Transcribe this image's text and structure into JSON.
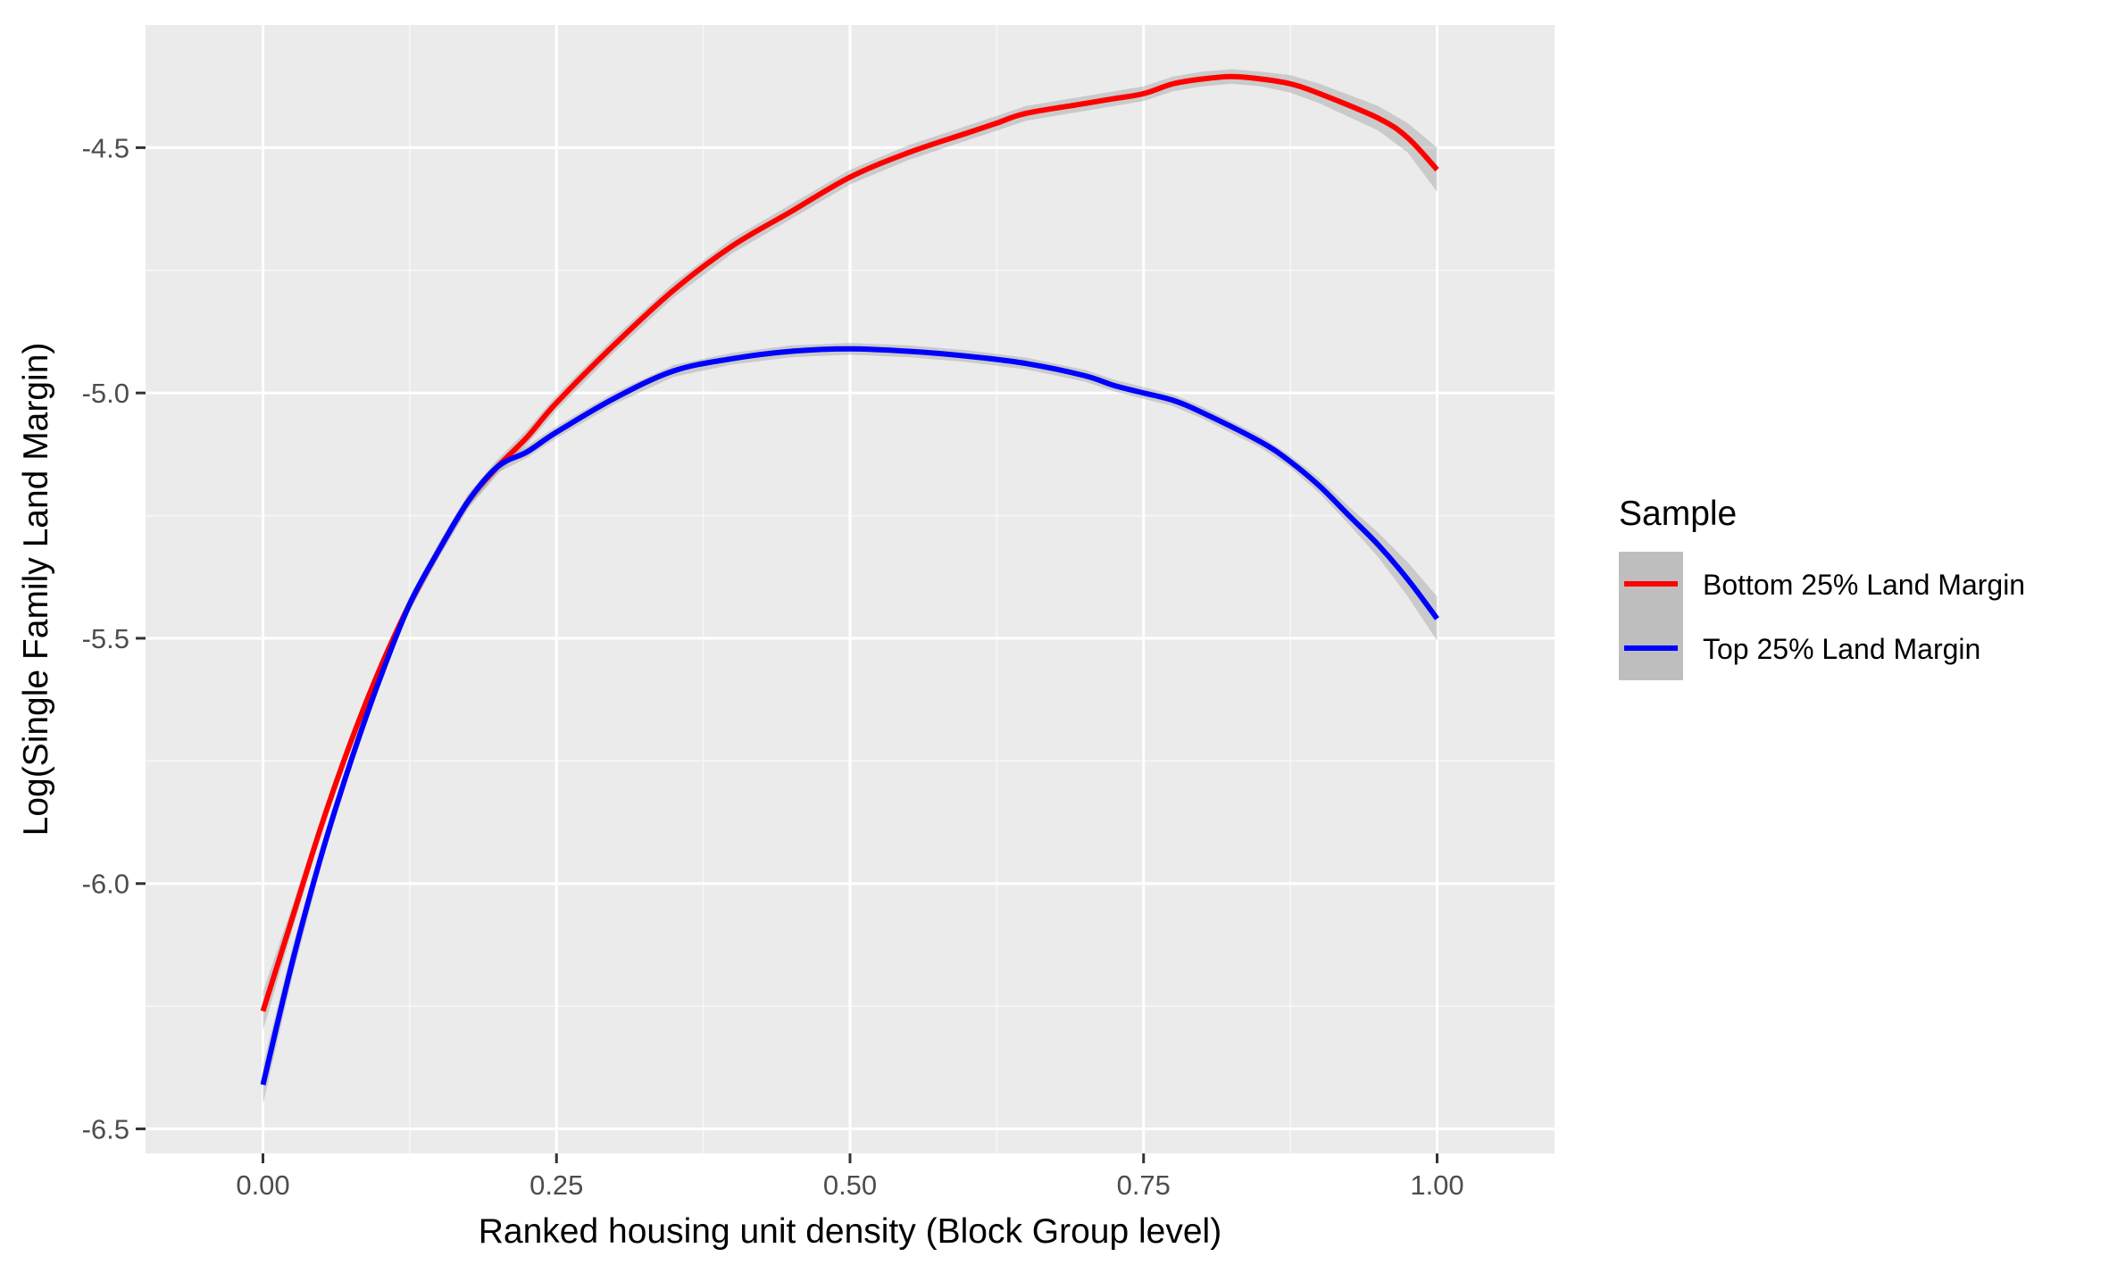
{
  "chart_data": {
    "type": "line",
    "xlabel": "Ranked housing unit density (Block Group level)",
    "ylabel": "Log(Single Family Land Margin)",
    "xlim": [
      -0.1,
      1.1
    ],
    "ylim": [
      -6.55,
      -4.25
    ],
    "x_ticks": [
      0.0,
      0.25,
      0.5,
      0.75,
      1.0
    ],
    "x_tick_labels": [
      "0.00",
      "0.25",
      "0.50",
      "0.75",
      "1.00"
    ],
    "y_ticks": [
      -6.5,
      -6.0,
      -5.5,
      -5.0,
      -4.5
    ],
    "y_tick_labels": [
      "-6.5",
      "-6.0",
      "-5.5",
      "-5.0",
      "-4.5"
    ],
    "grid": true,
    "confidence_band": true,
    "legend": {
      "title": "Sample",
      "position": "right"
    },
    "series": [
      {
        "name": "Bottom 25% Land Margin",
        "color": "#ff0000",
        "band_halfwidth": [
          0.04,
          0.025,
          0.015,
          0.015,
          0.015,
          0.015,
          0.015,
          0.015,
          0.015,
          0.015,
          0.015,
          0.015,
          0.015,
          0.015,
          0.015,
          0.015,
          0.015,
          0.015,
          0.015,
          0.015,
          0.015,
          0.015,
          0.015,
          0.015,
          0.015,
          0.015,
          0.015,
          0.018,
          0.02,
          0.025,
          0.03,
          0.045
        ],
        "points": [
          [
            0.0,
            -6.26
          ],
          [
            0.025,
            -6.07
          ],
          [
            0.05,
            -5.88
          ],
          [
            0.075,
            -5.71
          ],
          [
            0.1,
            -5.56
          ],
          [
            0.125,
            -5.43
          ],
          [
            0.15,
            -5.32
          ],
          [
            0.175,
            -5.22
          ],
          [
            0.2,
            -5.15
          ],
          [
            0.225,
            -5.09
          ],
          [
            0.25,
            -5.02
          ],
          [
            0.3,
            -4.9
          ],
          [
            0.35,
            -4.79
          ],
          [
            0.4,
            -4.7
          ],
          [
            0.45,
            -4.63
          ],
          [
            0.5,
            -4.56
          ],
          [
            0.55,
            -4.51
          ],
          [
            0.6,
            -4.47
          ],
          [
            0.625,
            -4.45
          ],
          [
            0.65,
            -4.43
          ],
          [
            0.7,
            -4.41
          ],
          [
            0.725,
            -4.4
          ],
          [
            0.75,
            -4.39
          ],
          [
            0.775,
            -4.37
          ],
          [
            0.8,
            -4.36
          ],
          [
            0.825,
            -4.355
          ],
          [
            0.85,
            -4.36
          ],
          [
            0.875,
            -4.37
          ],
          [
            0.9,
            -4.39
          ],
          [
            0.95,
            -4.44
          ],
          [
            0.975,
            -4.48
          ],
          [
            1.0,
            -4.545
          ]
        ]
      },
      {
        "name": "Top 25% Land Margin",
        "color": "#0000ff",
        "band_halfwidth": [
          0.04,
          0.03,
          0.02,
          0.015,
          0.012,
          0.012,
          0.012,
          0.012,
          0.012,
          0.012,
          0.012,
          0.012,
          0.012,
          0.012,
          0.012,
          0.012,
          0.012,
          0.012,
          0.012,
          0.012,
          0.012,
          0.012,
          0.012,
          0.012,
          0.012,
          0.012,
          0.015,
          0.018,
          0.025,
          0.035,
          0.045
        ],
        "points": [
          [
            0.0,
            -6.41
          ],
          [
            0.025,
            -6.16
          ],
          [
            0.05,
            -5.94
          ],
          [
            0.075,
            -5.75
          ],
          [
            0.1,
            -5.58
          ],
          [
            0.125,
            -5.43
          ],
          [
            0.15,
            -5.32
          ],
          [
            0.175,
            -5.22
          ],
          [
            0.2,
            -5.15
          ],
          [
            0.225,
            -5.12
          ],
          [
            0.25,
            -5.08
          ],
          [
            0.3,
            -5.01
          ],
          [
            0.35,
            -4.955
          ],
          [
            0.4,
            -4.93
          ],
          [
            0.45,
            -4.915
          ],
          [
            0.5,
            -4.91
          ],
          [
            0.55,
            -4.915
          ],
          [
            0.6,
            -4.925
          ],
          [
            0.65,
            -4.94
          ],
          [
            0.7,
            -4.965
          ],
          [
            0.725,
            -4.985
          ],
          [
            0.75,
            -5.0
          ],
          [
            0.775,
            -5.015
          ],
          [
            0.8,
            -5.04
          ],
          [
            0.85,
            -5.1
          ],
          [
            0.875,
            -5.14
          ],
          [
            0.9,
            -5.19
          ],
          [
            0.925,
            -5.25
          ],
          [
            0.95,
            -5.31
          ],
          [
            0.975,
            -5.38
          ],
          [
            1.0,
            -5.46
          ]
        ]
      }
    ]
  }
}
